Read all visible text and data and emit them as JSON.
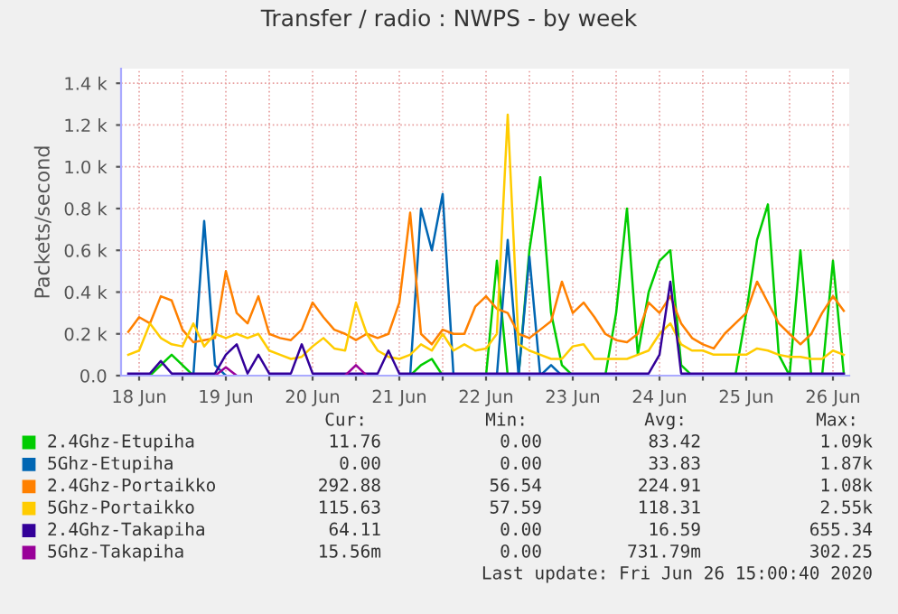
{
  "chart_data": {
    "type": "line",
    "title": "Transfer / radio : NWPS - by week",
    "ylabel": "Packets/second",
    "x": [
      "2020-06-18T09:00",
      "2020-06-18T12:00",
      "2020-06-18T15:00",
      "2020-06-18T18:00",
      "2020-06-18T21:00",
      "2020-06-19T00:00",
      "2020-06-19T03:00",
      "2020-06-19T06:00",
      "2020-06-19T09:00",
      "2020-06-19T12:00",
      "2020-06-19T15:00",
      "2020-06-19T18:00",
      "2020-06-19T21:00",
      "2020-06-20T00:00",
      "2020-06-20T03:00",
      "2020-06-20T06:00",
      "2020-06-20T09:00",
      "2020-06-20T12:00",
      "2020-06-20T15:00",
      "2020-06-20T18:00",
      "2020-06-20T21:00",
      "2020-06-21T00:00",
      "2020-06-21T03:00",
      "2020-06-21T06:00",
      "2020-06-21T09:00",
      "2020-06-21T12:00",
      "2020-06-21T15:00",
      "2020-06-21T18:00",
      "2020-06-21T21:00",
      "2020-06-22T00:00",
      "2020-06-22T03:00",
      "2020-06-22T06:00",
      "2020-06-22T09:00",
      "2020-06-22T12:00",
      "2020-06-22T15:00",
      "2020-06-22T18:00",
      "2020-06-22T21:00",
      "2020-06-23T00:00",
      "2020-06-23T03:00",
      "2020-06-23T06:00",
      "2020-06-23T09:00",
      "2020-06-23T12:00",
      "2020-06-23T15:00",
      "2020-06-23T18:00",
      "2020-06-23T21:00",
      "2020-06-24T00:00",
      "2020-06-24T03:00",
      "2020-06-24T06:00",
      "2020-06-24T09:00",
      "2020-06-24T12:00",
      "2020-06-24T15:00",
      "2020-06-24T18:00",
      "2020-06-24T21:00",
      "2020-06-25T00:00",
      "2020-06-25T03:00",
      "2020-06-25T06:00",
      "2020-06-25T09:00",
      "2020-06-25T12:00",
      "2020-06-25T15:00",
      "2020-06-25T18:00",
      "2020-06-25T21:00",
      "2020-06-26T00:00",
      "2020-06-26T03:00",
      "2020-06-26T06:00",
      "2020-06-26T09:00",
      "2020-06-26T12:00",
      "2020-06-26T15:00"
    ],
    "series": [
      {
        "name": "2.4Ghz-Etupiha",
        "color": "#00cc00",
        "values": [
          0,
          0,
          0,
          50,
          100,
          50,
          0,
          null,
          null,
          null,
          null,
          null,
          null,
          null,
          null,
          null,
          null,
          null,
          null,
          null,
          null,
          null,
          null,
          null,
          null,
          null,
          0,
          50,
          80,
          0,
          0,
          0,
          0,
          0,
          550,
          0,
          0,
          600,
          950,
          300,
          50,
          0,
          0,
          0,
          0,
          300,
          800,
          100,
          400,
          550,
          600,
          50,
          0,
          0,
          0,
          0,
          0,
          300,
          650,
          820,
          100,
          0,
          600,
          0,
          0,
          550,
          10
        ]
      },
      {
        "name": "5Ghz-Etupiha",
        "color": "#0066b3",
        "values": [
          null,
          null,
          null,
          null,
          null,
          null,
          0,
          740,
          50,
          0,
          null,
          null,
          null,
          null,
          null,
          null,
          null,
          null,
          null,
          null,
          null,
          null,
          null,
          null,
          null,
          null,
          0,
          800,
          600,
          870,
          0,
          null,
          null,
          null,
          0,
          650,
          0,
          570,
          0,
          50,
          0,
          null,
          null,
          null,
          null,
          null,
          null,
          null,
          null,
          null,
          null,
          null,
          null,
          null,
          null,
          null,
          null,
          null,
          null,
          null,
          null,
          null,
          null,
          null,
          null,
          null,
          null
        ]
      },
      {
        "name": "2.4Ghz-Portaikko",
        "color": "#ff8000",
        "values": [
          210,
          280,
          250,
          380,
          360,
          220,
          160,
          170,
          180,
          500,
          300,
          250,
          380,
          200,
          180,
          170,
          220,
          350,
          280,
          220,
          200,
          170,
          200,
          180,
          200,
          350,
          780,
          200,
          150,
          220,
          200,
          200,
          330,
          380,
          320,
          300,
          200,
          180,
          220,
          260,
          450,
          300,
          350,
          280,
          200,
          170,
          160,
          200,
          350,
          300,
          380,
          250,
          180,
          150,
          130,
          200,
          250,
          300,
          450,
          350,
          250,
          200,
          150,
          200,
          300,
          380,
          310
        ]
      },
      {
        "name": "5Ghz-Portaikko",
        "color": "#ffcc00",
        "values": [
          100,
          120,
          250,
          180,
          150,
          140,
          250,
          140,
          200,
          180,
          200,
          180,
          200,
          120,
          100,
          80,
          90,
          140,
          180,
          130,
          120,
          350,
          200,
          120,
          90,
          80,
          100,
          150,
          120,
          200,
          120,
          150,
          120,
          130,
          200,
          1250,
          150,
          120,
          100,
          80,
          80,
          140,
          150,
          80,
          80,
          80,
          80,
          100,
          120,
          200,
          250,
          150,
          120,
          120,
          100,
          100,
          100,
          100,
          130,
          120,
          100,
          90,
          90,
          80,
          80,
          120,
          100
        ]
      },
      {
        "name": "2.4Ghz-Takapiha",
        "color": "#330099",
        "values": [
          10,
          10,
          10,
          70,
          10,
          10,
          10,
          10,
          10,
          100,
          150,
          10,
          100,
          10,
          10,
          10,
          150,
          10,
          10,
          10,
          10,
          10,
          10,
          10,
          120,
          10,
          10,
          10,
          10,
          10,
          10,
          10,
          10,
          10,
          10,
          10,
          10,
          10,
          10,
          10,
          10,
          10,
          10,
          10,
          10,
          10,
          10,
          10,
          10,
          100,
          450,
          10,
          10,
          10,
          10,
          10,
          10,
          10,
          10,
          10,
          10,
          10,
          10,
          10,
          10,
          10,
          10
        ]
      },
      {
        "name": "5Ghz-Takapiha",
        "color": "#990099",
        "values": [
          null,
          null,
          null,
          null,
          null,
          null,
          null,
          null,
          0,
          40,
          0,
          null,
          null,
          null,
          null,
          null,
          null,
          null,
          null,
          null,
          0,
          50,
          0,
          null,
          null,
          null,
          null,
          null,
          null,
          null,
          null,
          null,
          null,
          null,
          null,
          null,
          null,
          null,
          null,
          null,
          null,
          null,
          null,
          null,
          null,
          null,
          null,
          null,
          null,
          null,
          null,
          null,
          null,
          null,
          null,
          null,
          null,
          null,
          null,
          null,
          null,
          null,
          null,
          null,
          null,
          null,
          null
        ]
      }
    ],
    "xlim": [
      "2020-06-18T07:00",
      "2020-06-26T16:30"
    ],
    "xticks": [
      {
        "value": "2020-06-18T12:00",
        "label": "18 Jun"
      },
      {
        "value": "2020-06-19T00:00",
        "label": null
      },
      {
        "value": "2020-06-19T12:00",
        "label": "19 Jun"
      },
      {
        "value": "2020-06-20T00:00",
        "label": null
      },
      {
        "value": "2020-06-20T12:00",
        "label": "20 Jun"
      },
      {
        "value": "2020-06-21T00:00",
        "label": null
      },
      {
        "value": "2020-06-21T12:00",
        "label": "21 Jun"
      },
      {
        "value": "2020-06-22T00:00",
        "label": null
      },
      {
        "value": "2020-06-22T12:00",
        "label": "22 Jun"
      },
      {
        "value": "2020-06-23T00:00",
        "label": null
      },
      {
        "value": "2020-06-23T12:00",
        "label": "23 Jun"
      },
      {
        "value": "2020-06-24T00:00",
        "label": null
      },
      {
        "value": "2020-06-24T12:00",
        "label": "24 Jun"
      },
      {
        "value": "2020-06-25T00:00",
        "label": null
      },
      {
        "value": "2020-06-25T12:00",
        "label": "25 Jun"
      },
      {
        "value": "2020-06-26T00:00",
        "label": null
      },
      {
        "value": "2020-06-26T12:00",
        "label": "26 Jun"
      }
    ],
    "ylim": [
      0,
      1470
    ],
    "yticks": [
      {
        "value": 0,
        "label": "0.0"
      },
      {
        "value": 200,
        "label": "0.2 k"
      },
      {
        "value": 400,
        "label": "0.4 k"
      },
      {
        "value": 600,
        "label": "0.6 k"
      },
      {
        "value": 800,
        "label": "0.8 k"
      },
      {
        "value": 1000,
        "label": "1.0 k"
      },
      {
        "value": 1200,
        "label": "1.2 k"
      },
      {
        "value": 1400,
        "label": "1.4 k"
      }
    ],
    "grid": true,
    "legend": "bottom",
    "marker": "none",
    "line_style": "solid",
    "annotations": [
      "Cur:",
      "Min:",
      "Avg:",
      "Max:",
      "11.76",
      "0.00",
      "83.42",
      "1.09k",
      "0.00",
      "0.00",
      "33.83",
      "1.87k",
      "292.88",
      "56.54",
      "224.91",
      "1.08k",
      "115.63",
      "57.59",
      "118.31",
      "2.55k",
      "64.11",
      "0.00",
      "16.59",
      "655.34",
      "15.56m",
      "0.00",
      "731.79m",
      "302.25",
      "Last update: Fri Jun 26 15:00:40 2020"
    ]
  }
}
